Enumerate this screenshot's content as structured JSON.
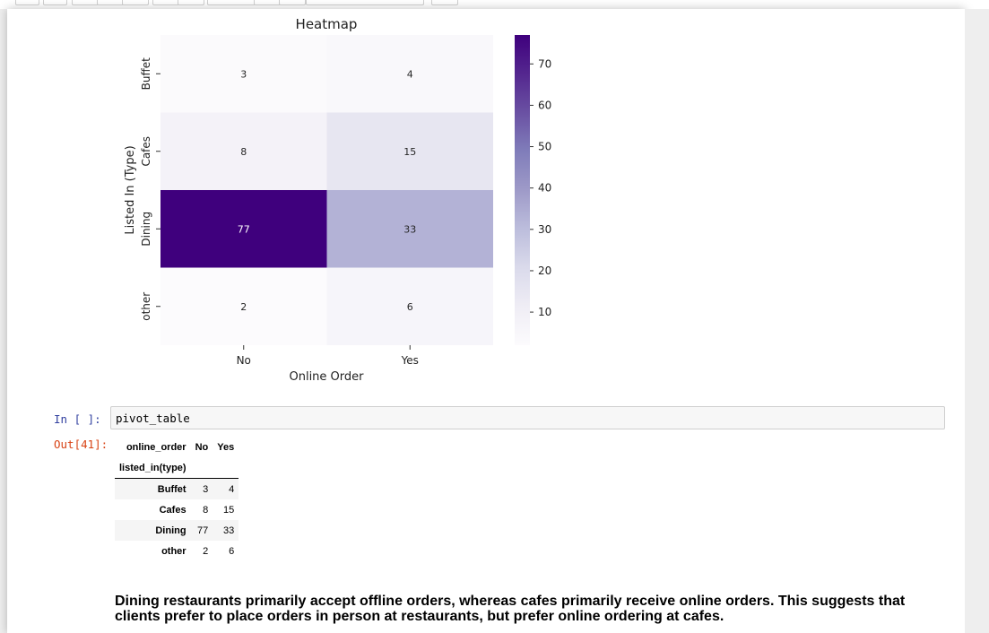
{
  "chart_data": {
    "type": "heatmap",
    "title": "Heatmap",
    "xlabel": "Online Order",
    "ylabel": "Listed In (Type)",
    "x_categories": [
      "No",
      "Yes"
    ],
    "y_categories": [
      "Buffet",
      "Cafes",
      "Dining",
      "other"
    ],
    "values": [
      [
        3,
        4
      ],
      [
        8,
        15
      ],
      [
        77,
        33
      ],
      [
        2,
        6
      ]
    ],
    "colormap": "Purples",
    "annotate": true,
    "colorbar": {
      "ticks": [
        10,
        20,
        30,
        40,
        50,
        60,
        70
      ],
      "range": [
        2,
        77
      ]
    }
  },
  "code_cell": {
    "prompt": "In [ ]:",
    "code": "pivot_table"
  },
  "output_cell": {
    "prompt": "Out[41]:"
  },
  "dataframe": {
    "columns_name": "online_order",
    "columns": [
      "No",
      "Yes"
    ],
    "index_name": "listed_in(type)",
    "rows": [
      {
        "index": "Buffet",
        "values": [
          "3",
          "4"
        ]
      },
      {
        "index": "Cafes",
        "values": [
          "8",
          "15"
        ]
      },
      {
        "index": "Dining",
        "values": [
          "77",
          "33"
        ]
      },
      {
        "index": "other",
        "values": [
          "2",
          "6"
        ]
      }
    ]
  },
  "markdown_text": "Dining restaurants primarily accept offline orders, whereas cafes primarily receive online orders. This suggests that clients prefer to place orders in person at restaurants, but prefer online ordering at cafes.",
  "colors": {
    "prompt_in": "#303f9f",
    "prompt_out": "#d84315",
    "colormap_low": "#fcfbfd",
    "colormap_high": "#3f007d"
  }
}
